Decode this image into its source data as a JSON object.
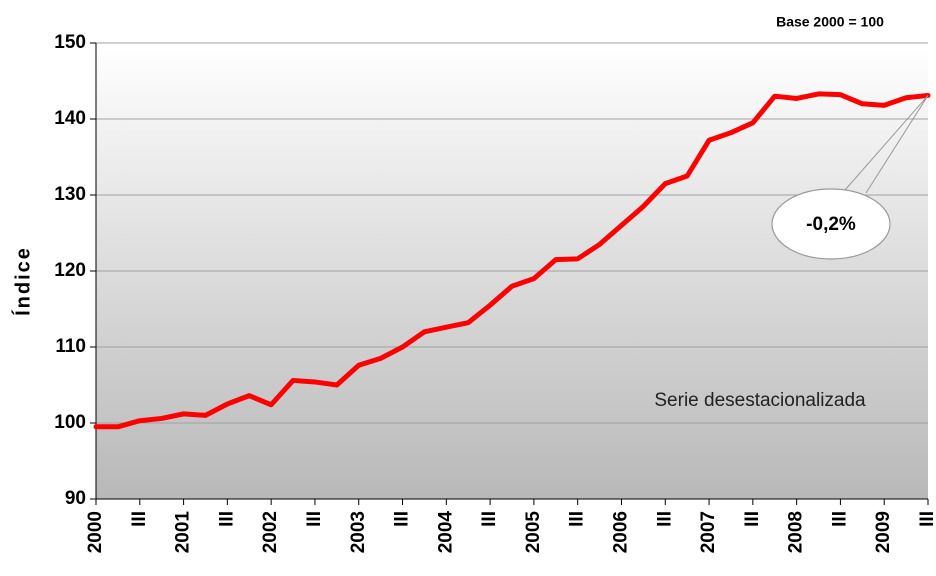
{
  "chart_data": {
    "type": "line",
    "y_label": "Índice",
    "subtitle": "Base 2000 = 100",
    "annotations": [
      "Serie desestacionalizada",
      "-0,2%"
    ],
    "categories": [
      "2000",
      null,
      "III",
      null,
      "2001",
      null,
      "III",
      null,
      "2002",
      null,
      "III",
      null,
      "2003",
      null,
      "III",
      null,
      "2004",
      null,
      "III",
      null,
      "2005",
      null,
      "III",
      null,
      "2006",
      null,
      "III",
      null,
      "2007",
      null,
      "III",
      null,
      "2008",
      null,
      "III",
      null,
      "2009",
      null,
      "III"
    ],
    "series": [
      {
        "name": "Índice",
        "color": "#ff0000",
        "values": [
          99.5,
          99.5,
          100.3,
          100.6,
          101.2,
          101.0,
          102.5,
          103.6,
          102.4,
          105.6,
          105.4,
          105.0,
          107.6,
          108.5,
          110.0,
          112.0,
          112.6,
          113.2,
          115.5,
          118.0,
          119.0,
          121.5,
          121.6,
          123.5,
          126.0,
          128.5,
          131.5,
          132.5,
          137.2,
          138.2,
          139.5,
          143.0,
          142.7,
          143.3,
          143.2,
          142.0,
          141.8,
          142.8,
          143.1
        ]
      }
    ],
    "ylim": [
      90,
      150
    ],
    "yticks": [
      90,
      100,
      110,
      120,
      130,
      140,
      150
    ],
    "grid": true
  }
}
